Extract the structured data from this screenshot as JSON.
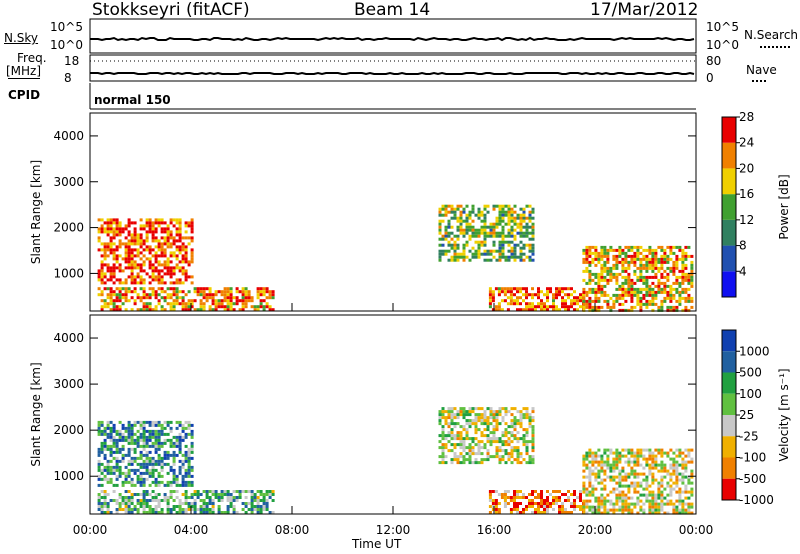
{
  "header": {
    "station": "Stokkseyri (fitACF)",
    "beam": "Beam 14",
    "date": "17/Mar/2012"
  },
  "strips": {
    "nsky_label": "N.Sky",
    "nsky_ticks": [
      "10^5",
      "10^0"
    ],
    "nsky_right_ticks": [
      "10^5",
      "10^0"
    ],
    "nsearch_label": "N.Search",
    "freq_label_1": "Freq.",
    "freq_label_2": "[MHz]",
    "freq_ticks": [
      "18",
      "8"
    ],
    "nave_label": "Nave",
    "nave_ticks": [
      "80",
      "0"
    ],
    "cpid_label": "CPID",
    "cpid_value": "normal 150"
  },
  "colors": {
    "scale_blue": "#1010f0",
    "scale_red": "#e80000",
    "ground_scatter": "#c8c8c8"
  },
  "chart_data": [
    {
      "type": "heatmap",
      "title": "Power",
      "ylabel": "Slant Range [km]",
      "xlabel": "",
      "ylim": [
        180,
        4500
      ],
      "yticks": [
        "1000",
        "2000",
        "3000",
        "4000"
      ],
      "xlim": [
        0,
        24
      ],
      "colorbar_label": "Power [dB]",
      "colorbar_ticks": [
        "4",
        "8",
        "12",
        "16",
        "20",
        "24",
        "28"
      ],
      "colorbar_colors": [
        "#1010f0",
        "#2050b0",
        "#308060",
        "#40a030",
        "#f0d000",
        "#f08000",
        "#e80000"
      ],
      "regions": [
        {
          "t0": 0.3,
          "t1": 4.1,
          "r0": 800,
          "r1": 2200,
          "level": 0.85
        },
        {
          "t0": 0.3,
          "t1": 7.2,
          "r0": 200,
          "r1": 700,
          "level": 0.75
        },
        {
          "t0": 13.8,
          "t1": 17.6,
          "r0": 1300,
          "r1": 2500,
          "level": 0.5
        },
        {
          "t0": 15.8,
          "t1": 19.5,
          "r0": 200,
          "r1": 700,
          "level": 0.8
        },
        {
          "t0": 19.5,
          "t1": 23.8,
          "r0": 200,
          "r1": 1600,
          "level": 0.7
        }
      ]
    },
    {
      "type": "heatmap",
      "title": "Velocity",
      "ylabel": "Slant Range [km]",
      "xlabel": "Time UT",
      "ylim": [
        180,
        4500
      ],
      "yticks": [
        "1000",
        "2000",
        "3000",
        "4000"
      ],
      "xlim": [
        0,
        24
      ],
      "xticks": [
        "00:00",
        "04:00",
        "08:00",
        "12:00",
        "16:00",
        "20:00",
        "00:00"
      ],
      "colorbar_label": "Velocity [m s⁻¹]",
      "colorbar_ticks": [
        "1000",
        "500",
        "100",
        "25",
        "-25",
        "-100",
        "-500",
        "-1000"
      ],
      "colorbar_colors": [
        "#1040b0",
        "#2060a0",
        "#20a040",
        "#60c040",
        "#c8c8c8",
        "#f0b000",
        "#f08000",
        "#e80000"
      ],
      "regions": [
        {
          "t0": 0.3,
          "t1": 4.1,
          "r0": 800,
          "r1": 2200,
          "level": 0.3
        },
        {
          "t0": 0.3,
          "t1": 7.2,
          "r0": 200,
          "r1": 700,
          "level": 0.4
        },
        {
          "t0": 13.8,
          "t1": 17.6,
          "r0": 1300,
          "r1": 2500,
          "level": 0.55
        },
        {
          "t0": 15.8,
          "t1": 19.5,
          "r0": 200,
          "r1": 700,
          "level": 0.8
        },
        {
          "t0": 19.5,
          "t1": 23.8,
          "r0": 200,
          "r1": 1600,
          "level": 0.6
        }
      ]
    }
  ]
}
